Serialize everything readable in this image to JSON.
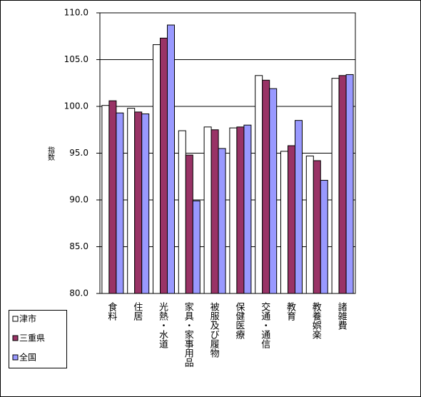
{
  "chart_data": {
    "type": "bar",
    "y_label": "指数",
    "categories": [
      "食料",
      "住居",
      "光熱・水道",
      "家具・家事用品",
      "被服及び履物",
      "保健医療",
      "交通・通信",
      "教育",
      "教養娯楽",
      "諸雑費"
    ],
    "series": [
      {
        "name": "津市",
        "color": "#ffffff",
        "values": [
          100.1,
          99.8,
          106.6,
          97.4,
          97.8,
          97.7,
          103.3,
          95.2,
          94.7,
          103.0
        ]
      },
      {
        "name": "三重県",
        "color": "#993366",
        "values": [
          100.6,
          99.4,
          107.3,
          94.8,
          97.5,
          97.8,
          102.8,
          95.8,
          94.2,
          103.3
        ]
      },
      {
        "name": "全国",
        "color": "#9999ff",
        "values": [
          99.3,
          99.2,
          108.7,
          89.9,
          95.5,
          98.0,
          101.9,
          98.5,
          92.1,
          103.4
        ]
      }
    ],
    "ylim": [
      80,
      110
    ],
    "yticks": [
      {
        "value": 80,
        "label": "80.0"
      },
      {
        "value": 85,
        "label": "85.0"
      },
      {
        "value": 90,
        "label": "90.0"
      },
      {
        "value": 95,
        "label": "95.0"
      },
      {
        "value": 100,
        "label": "100.0"
      },
      {
        "value": 105,
        "label": "105.0"
      },
      {
        "value": 110,
        "label": "110.0"
      }
    ],
    "grid": true
  }
}
